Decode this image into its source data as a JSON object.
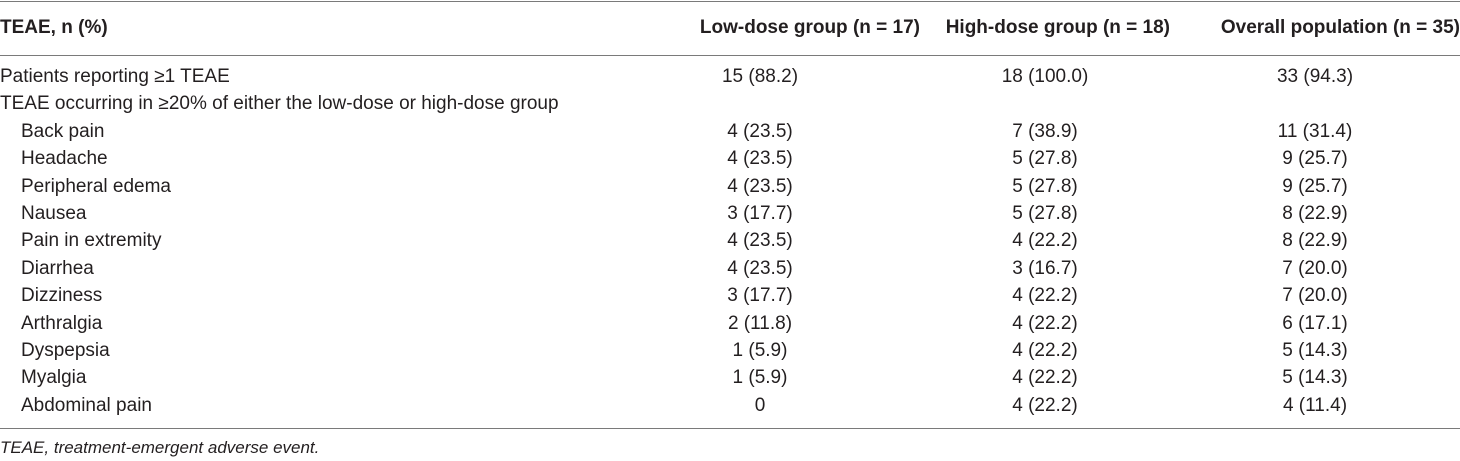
{
  "table": {
    "headers": [
      "TEAE, n (%)",
      "Low-dose group (n = 17)",
      "High-dose group (n = 18)",
      "Overall population (n = 35)"
    ],
    "rows": [
      {
        "label": "Patients reporting ≥1 TEAE",
        "low": "15 (88.2)",
        "high": "18 (100.0)",
        "overall": "33 (94.3)"
      },
      {
        "label": "TEAE occurring in ≥20% of either the low-dose or high-dose group",
        "low": "",
        "high": "",
        "overall": ""
      },
      {
        "label": "Back pain",
        "low": "4 (23.5)",
        "high": "7 (38.9)",
        "overall": "11 (31.4)"
      },
      {
        "label": "Headache",
        "low": "4 (23.5)",
        "high": "5 (27.8)",
        "overall": "9 (25.7)"
      },
      {
        "label": "Peripheral edema",
        "low": "4 (23.5)",
        "high": "5 (27.8)",
        "overall": "9 (25.7)"
      },
      {
        "label": "Nausea",
        "low": "3 (17.7)",
        "high": "5 (27.8)",
        "overall": "8 (22.9)"
      },
      {
        "label": "Pain in extremity",
        "low": "4 (23.5)",
        "high": "4 (22.2)",
        "overall": "8 (22.9)"
      },
      {
        "label": "Diarrhea",
        "low": "4 (23.5)",
        "high": "3 (16.7)",
        "overall": "7 (20.0)"
      },
      {
        "label": "Dizziness",
        "low": "3 (17.7)",
        "high": "4 (22.2)",
        "overall": "7 (20.0)"
      },
      {
        "label": "Arthralgia",
        "low": "2 (11.8)",
        "high": "4 (22.2)",
        "overall": "6 (17.1)"
      },
      {
        "label": "Dyspepsia",
        "low": "1 (5.9)",
        "high": "4 (22.2)",
        "overall": "5 (14.3)"
      },
      {
        "label": "Myalgia",
        "low": "1 (5.9)",
        "high": "4 (22.2)",
        "overall": "5 (14.3)"
      },
      {
        "label": "Abdominal pain",
        "low": "0",
        "high": "4 (22.2)",
        "overall": "4 (11.4)"
      }
    ]
  },
  "footnote": "TEAE, treatment-emergent adverse event."
}
